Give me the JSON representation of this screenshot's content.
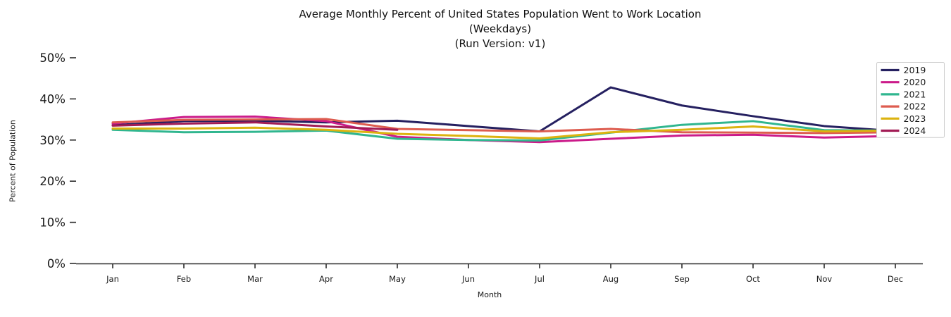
{
  "chart_data": {
    "type": "line",
    "title": "Average Monthly Percent of United States Population Went to Work Location",
    "subtitle1": "(Weekdays)",
    "subtitle2": "(Run Version: v1)",
    "xlabel": "Month",
    "ylabel": "Percent of Population",
    "categories": [
      "Jan",
      "Feb",
      "Mar",
      "Apr",
      "May",
      "Jun",
      "Jul",
      "Aug",
      "Sep",
      "Oct",
      "Nov",
      "Dec"
    ],
    "ylim": [
      0,
      50
    ],
    "ytick_step": 10,
    "ytick_labels": [
      "0%",
      "10%",
      "20%",
      "30%",
      "40%",
      "50%"
    ],
    "grid": false,
    "legend_position": "upper right",
    "legend_entries": [
      "2019",
      "2020",
      "2021",
      "2022",
      "2023",
      "2024"
    ],
    "series": [
      {
        "name": "2019",
        "color": "#252060",
        "values": [
          33.6,
          34.6,
          34.7,
          34.3,
          34.7,
          33.4,
          32.1,
          42.8,
          38.4,
          35.8,
          33.4,
          32.2
        ]
      },
      {
        "name": "2020",
        "color": "#cb1b8a",
        "values": [
          34.0,
          35.6,
          35.7,
          34.6,
          30.8,
          30.0,
          29.5,
          30.3,
          31.1,
          31.3,
          30.6,
          31.0
        ]
      },
      {
        "name": "2021",
        "color": "#30b68f",
        "values": [
          32.5,
          31.9,
          32.0,
          32.3,
          30.3,
          30.0,
          29.9,
          31.8,
          33.7,
          34.6,
          32.4,
          32.3
        ]
      },
      {
        "name": "2022",
        "color": "#dd5c4f",
        "values": [
          34.3,
          34.9,
          35.0,
          35.1,
          32.7,
          32.4,
          32.1,
          32.7,
          31.9,
          31.8,
          31.7,
          31.9
        ]
      },
      {
        "name": "2023",
        "color": "#dcb310",
        "values": [
          32.8,
          32.8,
          33.0,
          32.5,
          31.5,
          31.0,
          30.4,
          31.9,
          32.5,
          33.3,
          32.1,
          32.3
        ]
      },
      {
        "name": "2024",
        "color": "#a21c55",
        "values": [
          33.5,
          34.0,
          34.3,
          33.3,
          32.5,
          null,
          null,
          null,
          null,
          null,
          null,
          null
        ]
      }
    ]
  }
}
